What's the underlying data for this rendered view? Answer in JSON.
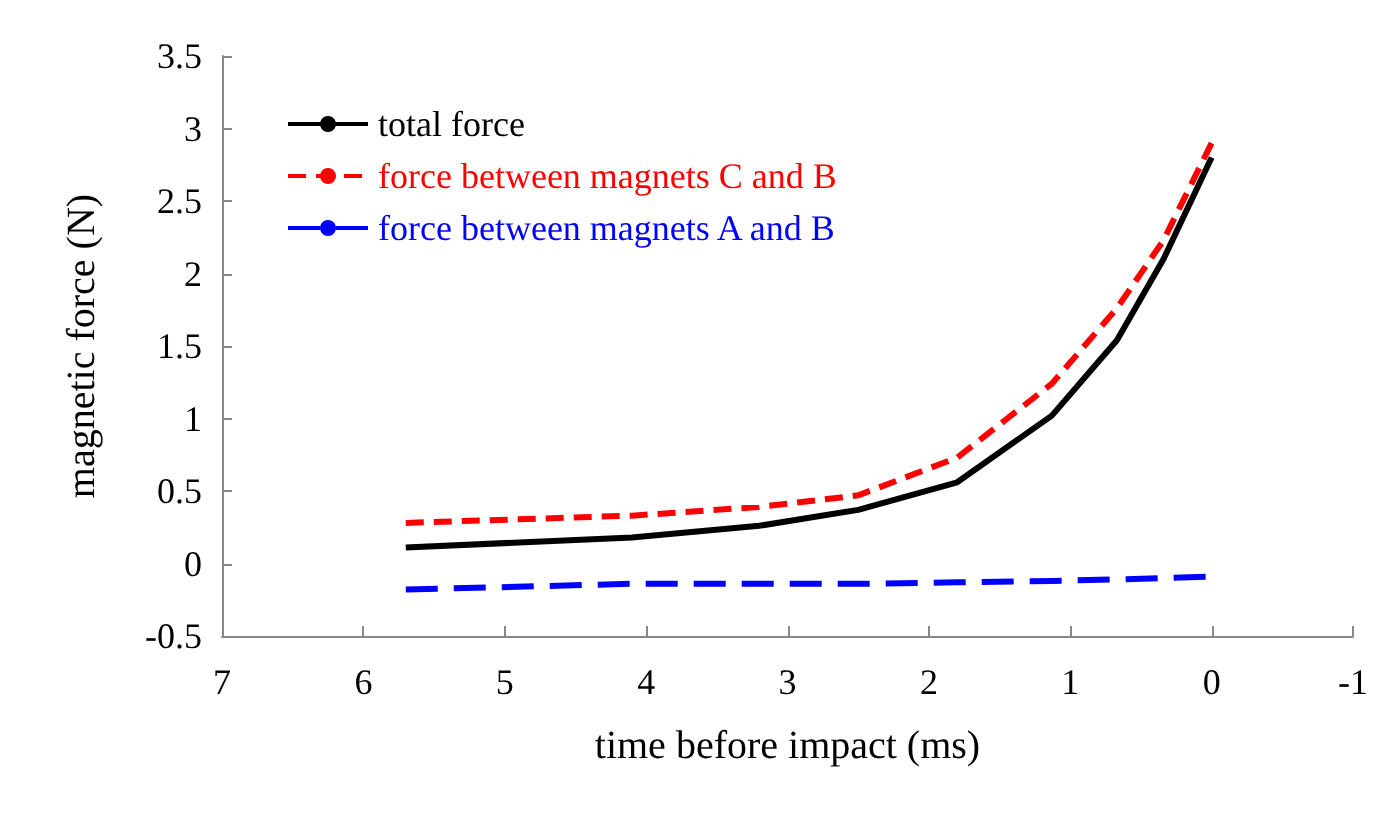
{
  "chart_data": {
    "type": "line",
    "xlabel": "time before impact (ms)",
    "ylabel": "magnetic force (N)",
    "xlim": [
      7,
      -1
    ],
    "xticks": [
      7,
      6,
      5,
      4,
      3,
      2,
      1,
      0,
      -1
    ],
    "ylim": [
      -0.5,
      3.5
    ],
    "yticks": [
      -0.5,
      0,
      0.5,
      1,
      1.5,
      2,
      2.5,
      3,
      3.5
    ],
    "grid": false,
    "legend": "top left",
    "marker": "none",
    "x": [
      5.7,
      4.1,
      3.2,
      2.5,
      1.8,
      1.13,
      0.67,
      0.34,
      0
    ],
    "series": [
      {
        "name": "total force",
        "color": "#000000",
        "line_style": "solid",
        "values": [
          0.11,
          0.18,
          0.26,
          0.37,
          0.56,
          1.02,
          1.54,
          2.1,
          2.8
        ]
      },
      {
        "name": "force between magnets C and B",
        "color": "#ff0000",
        "line_style": "dashed",
        "values": [
          0.28,
          0.33,
          0.39,
          0.47,
          0.73,
          1.24,
          1.76,
          2.23,
          2.9
        ]
      },
      {
        "name": "force between magnets A and B",
        "color": "#0000ff",
        "line_style": "dashed",
        "values": [
          -0.18,
          -0.14,
          -0.14,
          -0.14,
          -0.13,
          -0.12,
          -0.11,
          -0.1,
          -0.09
        ]
      }
    ]
  }
}
